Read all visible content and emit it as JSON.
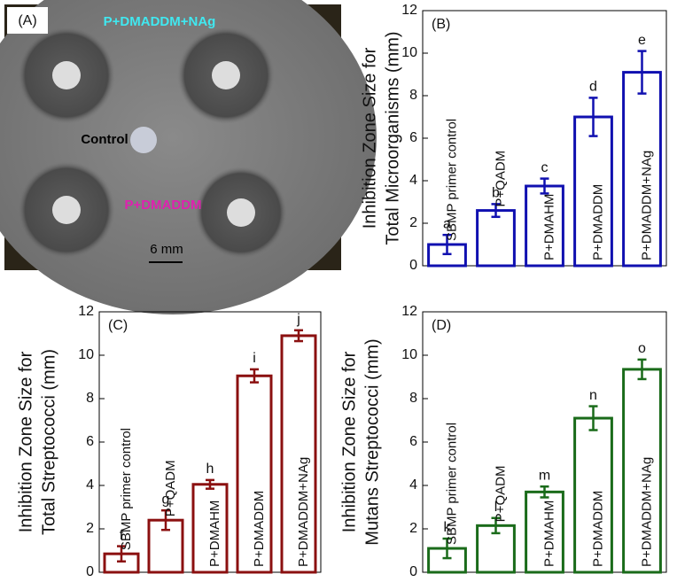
{
  "photo": {
    "panel_label": "(A)",
    "labels": [
      "P+DMADDM+NAg",
      "Control",
      "P+DMADDM",
      "6 mm"
    ]
  },
  "chart_data": [
    {
      "type": "bar",
      "panel_label": "(B)",
      "ylabel": [
        "Inhibition Zone Size for",
        "Total Microorganisms  (mm)"
      ],
      "categories": [
        "SBMP primer control",
        "P+QADM",
        "P+DMAHM",
        "P+DMADDM",
        "P+DMADDM+NAg"
      ],
      "values": [
        1.0,
        2.6,
        3.75,
        7.0,
        9.1
      ],
      "errors": [
        0.45,
        0.3,
        0.35,
        0.9,
        1.0
      ],
      "letters": [
        "a",
        "b",
        "c",
        "d",
        "e"
      ],
      "color": "#1010b0",
      "ylim": [
        0,
        12
      ],
      "yticks": [
        0,
        2,
        4,
        6,
        8,
        10,
        12
      ]
    },
    {
      "type": "bar",
      "panel_label": "(C)",
      "ylabel": [
        "Inhibition Zone Size for",
        "Total Streptococci  (mm)"
      ],
      "categories": [
        "SBMP primer control",
        "P+QADM",
        "P+DMAHM",
        "P+DMADDM",
        "P+DMADDM+NAg"
      ],
      "values": [
        0.85,
        2.4,
        4.05,
        9.05,
        10.9
      ],
      "errors": [
        0.35,
        0.45,
        0.2,
        0.3,
        0.25
      ],
      "letters": [
        "f",
        "g",
        "h",
        "i",
        "j"
      ],
      "color": "#8b1010",
      "ylim": [
        0,
        12
      ],
      "yticks": [
        0,
        2,
        4,
        6,
        8,
        10,
        12
      ]
    },
    {
      "type": "bar",
      "panel_label": "(D)",
      "ylabel": [
        "Inhibition Zone Size for",
        "Mutans Streptococci  (mm)"
      ],
      "categories": [
        "SBMP primer control",
        "P+QADM",
        "P+DMAHM",
        "P+DMADDM",
        "P+DMADDM+NAg"
      ],
      "values": [
        1.1,
        2.15,
        3.7,
        7.1,
        9.35
      ],
      "errors": [
        0.45,
        0.35,
        0.25,
        0.55,
        0.45
      ],
      "letters": [
        "k",
        "l",
        "m",
        "n",
        "o"
      ],
      "color": "#1a6b1a",
      "ylim": [
        0,
        12
      ],
      "yticks": [
        0,
        2,
        4,
        6,
        8,
        10,
        12
      ]
    }
  ]
}
